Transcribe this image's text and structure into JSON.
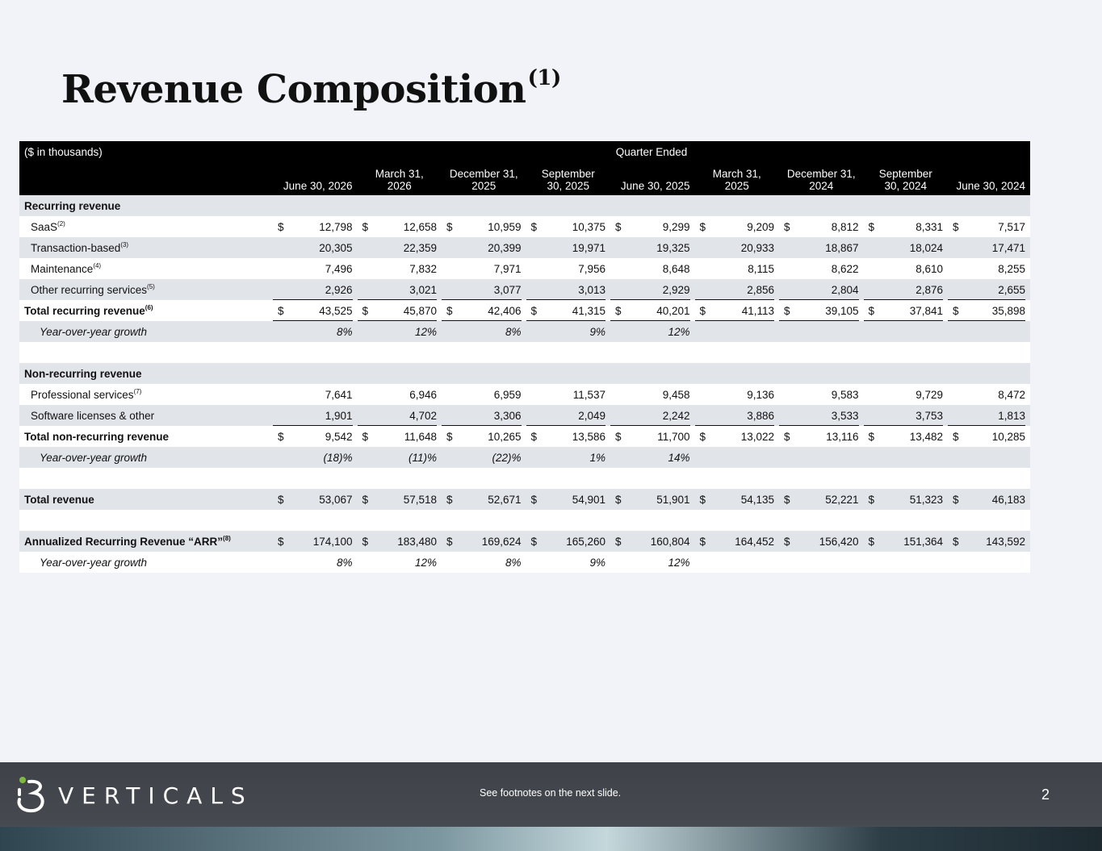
{
  "title": {
    "text": "Revenue Composition",
    "sup": "(1)"
  },
  "table": {
    "units_label": "($ in thousands)",
    "group_header": "Quarter Ended",
    "columns": [
      [
        "June 30, 2026"
      ],
      [
        "March 31,",
        "2026"
      ],
      [
        "December 31,",
        "2025"
      ],
      [
        "September",
        "30, 2025"
      ],
      [
        "June 30, 2025"
      ],
      [
        "March 31,",
        "2025"
      ],
      [
        "December 31,",
        "2024"
      ],
      [
        "September",
        "30, 2024"
      ],
      [
        "June 30, 2024"
      ]
    ],
    "currency": "$",
    "rows": [
      {
        "label": "Recurring revenue",
        "kind": "section",
        "shade": true
      },
      {
        "label": "SaaS",
        "sup": "(2)",
        "kind": "item",
        "dollar": true,
        "values": [
          "12,798",
          "12,658",
          "10,959",
          "10,375",
          "9,299",
          "9,209",
          "8,812",
          "8,331",
          "7,517"
        ],
        "shade": false
      },
      {
        "label": "Transaction-based",
        "sup": "(3)",
        "kind": "item",
        "values": [
          "20,305",
          "22,359",
          "20,399",
          "19,971",
          "19,325",
          "20,933",
          "18,867",
          "18,024",
          "17,471"
        ],
        "shade": true
      },
      {
        "label": "Maintenance",
        "sup": "(4)",
        "kind": "item",
        "values": [
          "7,496",
          "7,832",
          "7,971",
          "7,956",
          "8,648",
          "8,115",
          "8,622",
          "8,610",
          "8,255"
        ],
        "shade": false
      },
      {
        "label": "Other recurring services",
        "sup": "(5)",
        "kind": "item",
        "underline": true,
        "values": [
          "2,926",
          "3,021",
          "3,077",
          "3,013",
          "2,929",
          "2,856",
          "2,804",
          "2,876",
          "2,655"
        ],
        "shade": true
      },
      {
        "label": "Total recurring revenue",
        "sup": "(6)",
        "kind": "total",
        "dollar": true,
        "underline": true,
        "values": [
          "43,525",
          "45,870",
          "42,406",
          "41,315",
          "40,201",
          "41,113",
          "39,105",
          "37,841",
          "35,898"
        ],
        "shade": false
      },
      {
        "label": "Year-over-year growth",
        "kind": "growth",
        "values": [
          "8%",
          "12%",
          "8%",
          "9%",
          "12%",
          "",
          "",
          "",
          ""
        ],
        "shade": true
      },
      {
        "kind": "blank",
        "shade": false
      },
      {
        "label": "Non-recurring revenue",
        "kind": "section",
        "shade": true
      },
      {
        "label": "Professional services",
        "sup": "(7)",
        "kind": "item",
        "values": [
          "7,641",
          "6,946",
          "6,959",
          "11,537",
          "9,458",
          "9,136",
          "9,583",
          "9,729",
          "8,472"
        ],
        "shade": false
      },
      {
        "label": "Software licenses & other",
        "kind": "item",
        "underline": true,
        "values": [
          "1,901",
          "4,702",
          "3,306",
          "2,049",
          "2,242",
          "3,886",
          "3,533",
          "3,753",
          "1,813"
        ],
        "shade": true
      },
      {
        "label": "Total non-recurring revenue",
        "kind": "total",
        "dollar": true,
        "values": [
          "9,542",
          "11,648",
          "10,265",
          "13,586",
          "11,700",
          "13,022",
          "13,116",
          "13,482",
          "10,285"
        ],
        "shade": false
      },
      {
        "label": "Year-over-year growth",
        "kind": "growth",
        "values": [
          "(18)%",
          "(11)%",
          "(22)%",
          "1%",
          "14%",
          "",
          "",
          "",
          ""
        ],
        "shade": true
      },
      {
        "kind": "blank",
        "shade": false
      },
      {
        "label": "Total revenue",
        "kind": "total",
        "dollar": true,
        "values": [
          "53,067",
          "57,518",
          "52,671",
          "54,901",
          "51,901",
          "54,135",
          "52,221",
          "51,323",
          "46,183"
        ],
        "shade": true
      },
      {
        "kind": "blank",
        "shade": false
      },
      {
        "label": "Annualized Recurring Revenue “ARR”",
        "sup": "(8)",
        "kind": "total",
        "dollar": true,
        "values": [
          "174,100",
          "183,480",
          "169,624",
          "165,260",
          "160,804",
          "164,452",
          "156,420",
          "151,364",
          "143,592"
        ],
        "shade": true
      },
      {
        "label": "Year-over-year growth",
        "kind": "growth",
        "values": [
          "8%",
          "12%",
          "8%",
          "9%",
          "12%",
          "",
          "",
          "",
          ""
        ],
        "shade": false
      }
    ]
  },
  "footer": {
    "logo_text": "VERTICALS",
    "note": "See footnotes on the next slide.",
    "page": "2"
  },
  "colors": {
    "background": "#f2f3f8",
    "header": "#000000",
    "shade": "#e1e4e9"
  }
}
